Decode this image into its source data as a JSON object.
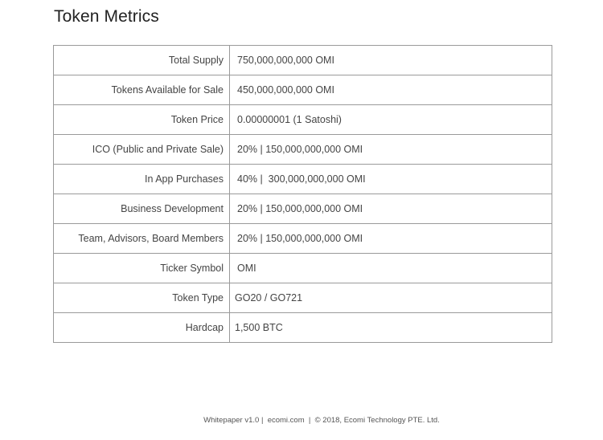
{
  "page": {
    "title": "Token Metrics"
  },
  "metrics": {
    "rows": [
      {
        "label": "Total Supply",
        "value": "750,000,000,000 OMI"
      },
      {
        "label": "Tokens Available for Sale",
        "value": "450,000,000,000 OMI"
      },
      {
        "label": "Token Price",
        "value": "0.00000001 (1 Satoshi)"
      },
      {
        "label": "ICO (Public and Private Sale)",
        "value": "20% | 150,000,000,000 OMI"
      },
      {
        "label": "In App Purchases",
        "value": "40% |  300,000,000,000 OMI"
      },
      {
        "label": "Business Development",
        "value": "20% | 150,000,000,000 OMI"
      },
      {
        "label": "Team, Advisors, Board Members",
        "value": "20% | 150,000,000,000 OMI"
      },
      {
        "label": "Ticker Symbol",
        "value": "OMI"
      },
      {
        "label": "Token Type",
        "value": "GO20 / GO721"
      },
      {
        "label": "Hardcap",
        "value": "1,500 BTC"
      }
    ]
  },
  "footer": {
    "text": "Whitepaper v1.0 |  ecomi.com  |  © 2018, Ecomi Technology PTE. Ltd."
  }
}
